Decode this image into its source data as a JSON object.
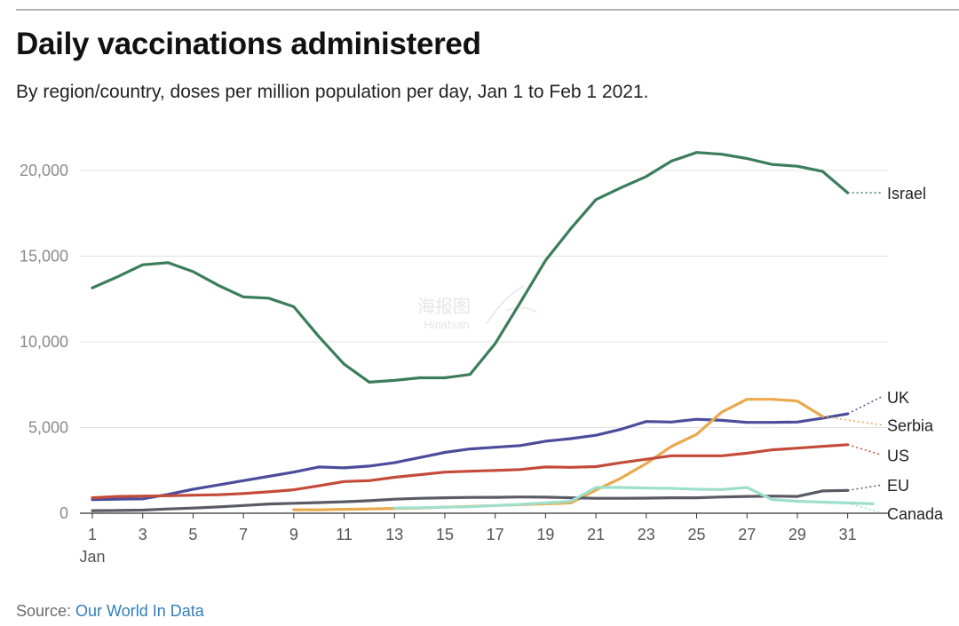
{
  "title": "Daily vaccinations administered",
  "subtitle": "By region/country, doses per million population per day, Jan 1 to Feb 1 2021.",
  "source": {
    "prefix": "Source: ",
    "link_text": "Our World In Data"
  },
  "chart_data": {
    "type": "line",
    "ylim": [
      0,
      22000
    ],
    "yticks": [
      0,
      5000,
      10000,
      15000,
      20000
    ],
    "ytick_labels": [
      "0",
      "5,000",
      "10,000",
      "15,000",
      "20,000"
    ],
    "xlim": [
      1,
      32
    ],
    "xticks": [
      1,
      3,
      5,
      7,
      9,
      11,
      13,
      15,
      17,
      19,
      21,
      23,
      25,
      27,
      29,
      31
    ],
    "xtick_labels": [
      "1",
      "3",
      "5",
      "7",
      "9",
      "11",
      "13",
      "15",
      "17",
      "19",
      "21",
      "23",
      "25",
      "27",
      "29",
      "31"
    ],
    "x_sublabel": "Jan",
    "grid": true,
    "series": [
      {
        "name": "Israel",
        "color": "#3b7d5a",
        "label_value": 18700,
        "x": [
          1,
          2,
          3,
          4,
          5,
          6,
          7,
          8,
          9,
          10,
          11,
          12,
          13,
          14,
          15,
          16,
          17,
          18,
          19,
          20,
          21,
          22,
          23,
          24,
          25,
          26,
          27,
          28,
          29,
          30,
          31
        ],
        "values": [
          13150,
          13800,
          14500,
          14620,
          14100,
          13300,
          12620,
          12550,
          12050,
          10300,
          8700,
          7650,
          7750,
          7900,
          7900,
          8100,
          9900,
          12300,
          14750,
          16600,
          18300,
          19000,
          19650,
          20550,
          21050,
          20950,
          20700,
          20350,
          20250,
          19950,
          18700
        ]
      },
      {
        "name": "UK",
        "color": "#4b4d9c",
        "label_value": 6800,
        "x": [
          1,
          2,
          3,
          4,
          5,
          6,
          7,
          8,
          9,
          10,
          11,
          12,
          13,
          14,
          15,
          16,
          17,
          18,
          19,
          20,
          21,
          22,
          23,
          24,
          25,
          26,
          27,
          28,
          29,
          30,
          31
        ],
        "values": [
          800,
          820,
          840,
          1100,
          1400,
          1650,
          1900,
          2150,
          2400,
          2700,
          2650,
          2750,
          2950,
          3250,
          3550,
          3750,
          3850,
          3950,
          4200,
          4350,
          4550,
          4900,
          5350,
          5320,
          5480,
          5420,
          5300,
          5300,
          5320,
          5550,
          5800
        ]
      },
      {
        "name": "Serbia",
        "color": "#e9a94c",
        "label_value": 5150,
        "x": [
          9,
          10,
          11,
          12,
          13,
          14,
          15,
          16,
          17,
          18,
          19,
          20,
          21,
          22,
          23,
          24,
          25,
          26,
          27,
          28,
          29,
          30
        ],
        "values": [
          200,
          200,
          230,
          250,
          280,
          300,
          350,
          400,
          450,
          500,
          550,
          600,
          1350,
          2050,
          2900,
          3900,
          4600,
          5900,
          6650,
          6650,
          6550,
          5650
        ]
      },
      {
        "name": "US",
        "color": "#c44b3a",
        "label_value": 3400,
        "x": [
          1,
          2,
          3,
          4,
          5,
          6,
          7,
          8,
          9,
          10,
          11,
          12,
          13,
          14,
          15,
          16,
          17,
          18,
          19,
          20,
          21,
          22,
          23,
          24,
          25,
          26,
          27,
          28,
          29,
          30,
          31
        ],
        "values": [
          900,
          980,
          1000,
          1020,
          1050,
          1080,
          1150,
          1250,
          1370,
          1600,
          1850,
          1900,
          2100,
          2250,
          2400,
          2450,
          2500,
          2550,
          2700,
          2680,
          2720,
          2950,
          3150,
          3350,
          3350,
          3350,
          3500,
          3700,
          3800,
          3900,
          4000
        ]
      },
      {
        "name": "EU",
        "color": "#5a5a66",
        "label_value": 1650,
        "x": [
          1,
          2,
          3,
          4,
          5,
          6,
          7,
          8,
          9,
          10,
          11,
          12,
          13,
          14,
          15,
          16,
          17,
          18,
          19,
          20,
          21,
          22,
          23,
          24,
          25,
          26,
          27,
          28,
          29,
          30,
          31
        ],
        "values": [
          150,
          160,
          180,
          250,
          300,
          370,
          450,
          540,
          580,
          620,
          670,
          730,
          820,
          870,
          900,
          920,
          930,
          950,
          940,
          900,
          870,
          870,
          880,
          900,
          900,
          950,
          980,
          1000,
          980,
          1300,
          1330
        ]
      },
      {
        "name": "Canada",
        "color": "#9fe0cc",
        "label_value": 0,
        "x": [
          13,
          14,
          15,
          16,
          17,
          18,
          19,
          20,
          21,
          22,
          23,
          24,
          25,
          26,
          27,
          28,
          29,
          30,
          31,
          32
        ],
        "values": [
          300,
          320,
          350,
          380,
          450,
          520,
          600,
          700,
          1500,
          1500,
          1470,
          1450,
          1400,
          1380,
          1500,
          800,
          700,
          650,
          600,
          550
        ]
      }
    ]
  },
  "watermark": {
    "text_cn": "海报图",
    "text_en": "Hinabian"
  }
}
